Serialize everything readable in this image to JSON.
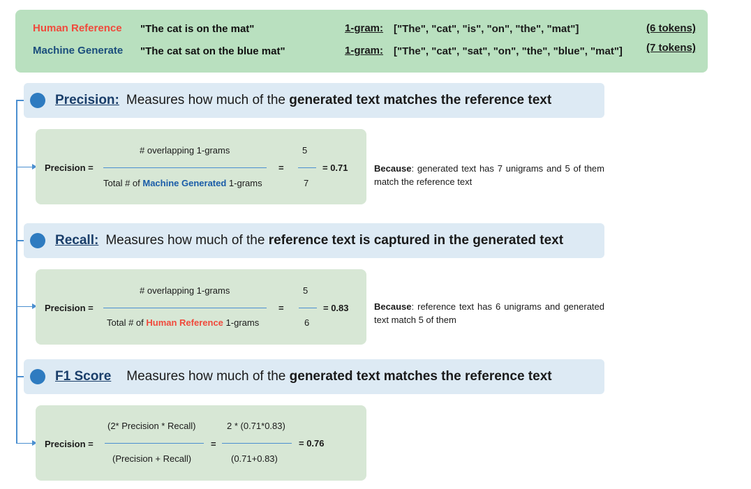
{
  "top": {
    "human_label": "Human Reference",
    "machine_label": "Machine Generate",
    "human_sentence": "\"The cat is on the mat\"",
    "machine_sentence": "\"The cat sat on the blue mat\"",
    "gram_label": "1-gram:",
    "human_tokens": "[\"The\", \"cat\", \"is\", \"on\", \"the\", \"mat\"]",
    "machine_tokens": "[\"The\", \"cat\", \"sat\", \"on\", \"the\", \"blue\", \"mat\"]",
    "human_count": "(6 tokens)",
    "machine_count": "(7 tokens)",
    "colors": {
      "human": "#f04a3c",
      "machine": "#1a4d7c"
    }
  },
  "precision": {
    "title": "Precision:",
    "desc_prefix": "Measures how much of the ",
    "desc_bold": "generated text matches the reference text",
    "lhs": "Precision =",
    "numerator": "# overlapping 1-grams",
    "denom_prefix": "Total # of ",
    "denom_highlight": "Machine Generated",
    "denom_suffix": " 1-grams",
    "eq": "=",
    "num_val": "5",
    "den_val": "7",
    "result": "= 0.71",
    "because_label": "Because",
    "because_text": ": generated text has 7 unigrams and 5 of them match the reference text"
  },
  "recall": {
    "title": "Recall:",
    "desc_prefix": "Measures how much of the ",
    "desc_bold": "reference text is captured in the generated text",
    "lhs": "Precision =",
    "numerator": "# overlapping 1-grams",
    "denom_prefix": "Total # of ",
    "denom_highlight": "Human Reference",
    "denom_suffix": " 1-grams",
    "eq": "=",
    "num_val": "5",
    "den_val": "6",
    "result": "= 0.83",
    "because_label": "Because",
    "because_text": ": reference text has 6 unigrams and generated text match 5 of them"
  },
  "f1": {
    "title": "F1 Score",
    "desc_prefix": "Measures how much of the ",
    "desc_bold": "generated text matches the reference text",
    "lhs": "Precision =",
    "numerator": "(2* Precision * Recall)",
    "denominator": "(Precision + Recall)",
    "eq": "=",
    "num_val": "2 * (0.71*0.83)",
    "den_val": "(0.71+0.83)",
    "result": "= 0.76"
  }
}
